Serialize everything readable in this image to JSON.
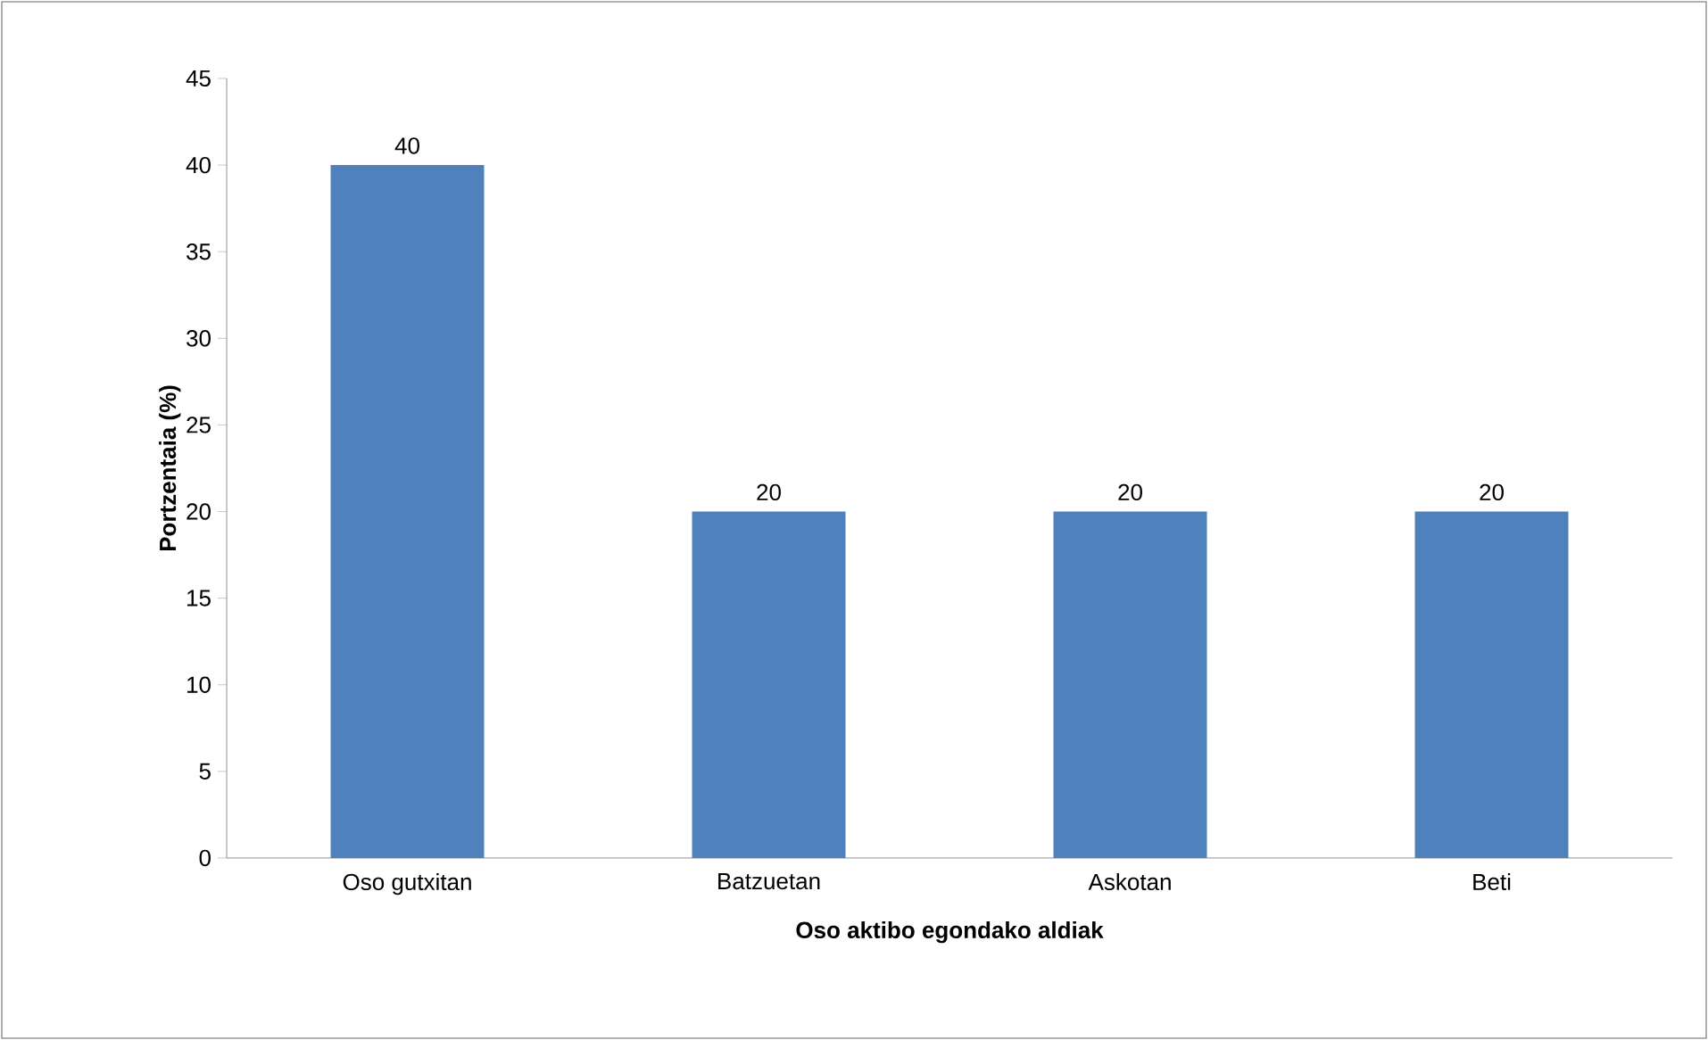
{
  "chart_data": {
    "type": "bar",
    "xlabel": "Oso aktibo egondako aldiak",
    "ylabel": "Portzentaia (%)",
    "categories": [
      "Oso gutxitan",
      "Batzuetan",
      "Askotan",
      "Beti"
    ],
    "values": [
      40,
      20,
      20,
      20
    ],
    "color": "#4f81bd",
    "ylim": [
      0,
      45
    ],
    "yticks": [
      0,
      5,
      10,
      15,
      20,
      25,
      30,
      35,
      40,
      45
    ],
    "data_labels": true,
    "grid": false
  }
}
